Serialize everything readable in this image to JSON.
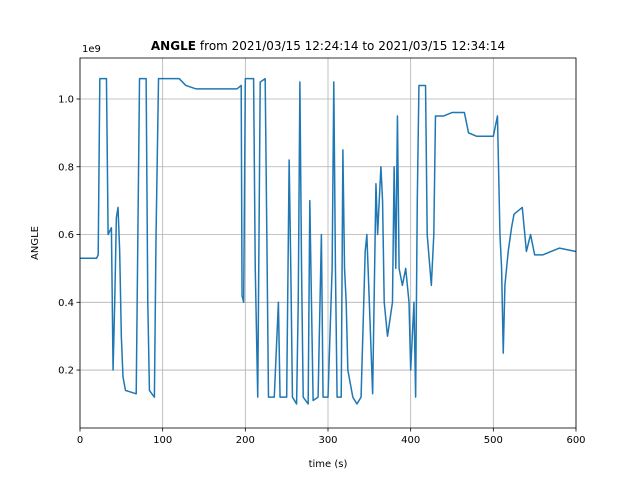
{
  "chart_data": {
    "type": "line",
    "title_bold": "ANGLE",
    "title": "from 2021/03/15 12:24:14 to 2021/03/15 12:34:14",
    "x_label": "time (s)",
    "y_label": "ANGLE",
    "y_offset_label": "1e9",
    "grid": true,
    "xlim": [
      0,
      600
    ],
    "xticks": [
      0,
      100,
      200,
      300,
      400,
      500,
      600
    ],
    "ylim": [
      0.029,
      1.121
    ],
    "yticks": [
      0.2,
      0.4,
      0.6,
      0.8,
      {
        "value": 1,
        "label": "1.0"
      }
    ],
    "series": [
      {
        "color": "#1f77b4",
        "x": [
          0,
          20,
          22,
          24,
          32,
          34,
          38,
          40,
          42,
          44,
          46,
          48,
          50,
          52,
          55,
          68,
          70,
          72,
          80,
          82,
          84,
          90,
          92,
          95,
          100,
          120,
          128,
          140,
          160,
          190,
          195,
          196,
          198,
          200,
          210,
          212,
          215,
          218,
          224,
          226,
          228,
          235,
          240,
          242,
          250,
          253,
          255,
          257,
          262,
          264,
          266,
          268,
          270,
          276,
          278,
          280,
          282,
          288,
          292,
          294,
          300,
          305,
          307,
          309,
          311,
          316,
          318,
          320,
          322,
          324,
          330,
          335,
          340,
          345,
          347,
          350,
          354,
          358,
          360,
          362,
          364,
          366,
          368,
          372,
          378,
          380,
          382,
          384,
          386,
          390,
          394,
          398,
          400,
          402,
          404,
          406,
          408,
          410,
          418,
          420,
          425,
          428,
          430,
          440,
          450,
          460,
          465,
          470,
          480,
          500,
          505,
          508,
          510,
          512,
          514,
          518,
          522,
          525,
          530,
          535,
          540,
          545,
          550,
          560,
          570,
          580,
          600
        ],
        "values": [
          0.53,
          0.53,
          0.54,
          1.06,
          1.06,
          0.6,
          0.62,
          0.2,
          0.4,
          0.65,
          0.68,
          0.55,
          0.3,
          0.18,
          0.14,
          0.13,
          0.6,
          1.06,
          1.06,
          0.4,
          0.14,
          0.12,
          0.6,
          1.06,
          1.06,
          1.06,
          1.04,
          1.03,
          1.03,
          1.03,
          1.04,
          0.42,
          0.4,
          1.06,
          1.06,
          0.5,
          0.12,
          1.05,
          1.06,
          0.6,
          0.12,
          0.12,
          0.4,
          0.12,
          0.12,
          0.82,
          0.5,
          0.12,
          0.1,
          0.4,
          1.05,
          0.5,
          0.12,
          0.1,
          0.7,
          0.4,
          0.11,
          0.12,
          0.6,
          0.12,
          0.12,
          0.5,
          1.05,
          0.5,
          0.12,
          0.12,
          0.85,
          0.5,
          0.4,
          0.2,
          0.12,
          0.1,
          0.12,
          0.55,
          0.6,
          0.4,
          0.13,
          0.75,
          0.6,
          0.7,
          0.8,
          0.7,
          0.4,
          0.3,
          0.4,
          0.8,
          0.5,
          0.95,
          0.5,
          0.45,
          0.5,
          0.4,
          0.2,
          0.3,
          0.4,
          0.12,
          0.7,
          1.04,
          1.04,
          0.6,
          0.45,
          0.6,
          0.95,
          0.95,
          0.96,
          0.96,
          0.96,
          0.9,
          0.89,
          0.89,
          0.95,
          0.6,
          0.5,
          0.25,
          0.45,
          0.55,
          0.62,
          0.66,
          0.67,
          0.68,
          0.55,
          0.6,
          0.54,
          0.54,
          0.55,
          0.56,
          0.55
        ]
      }
    ]
  }
}
